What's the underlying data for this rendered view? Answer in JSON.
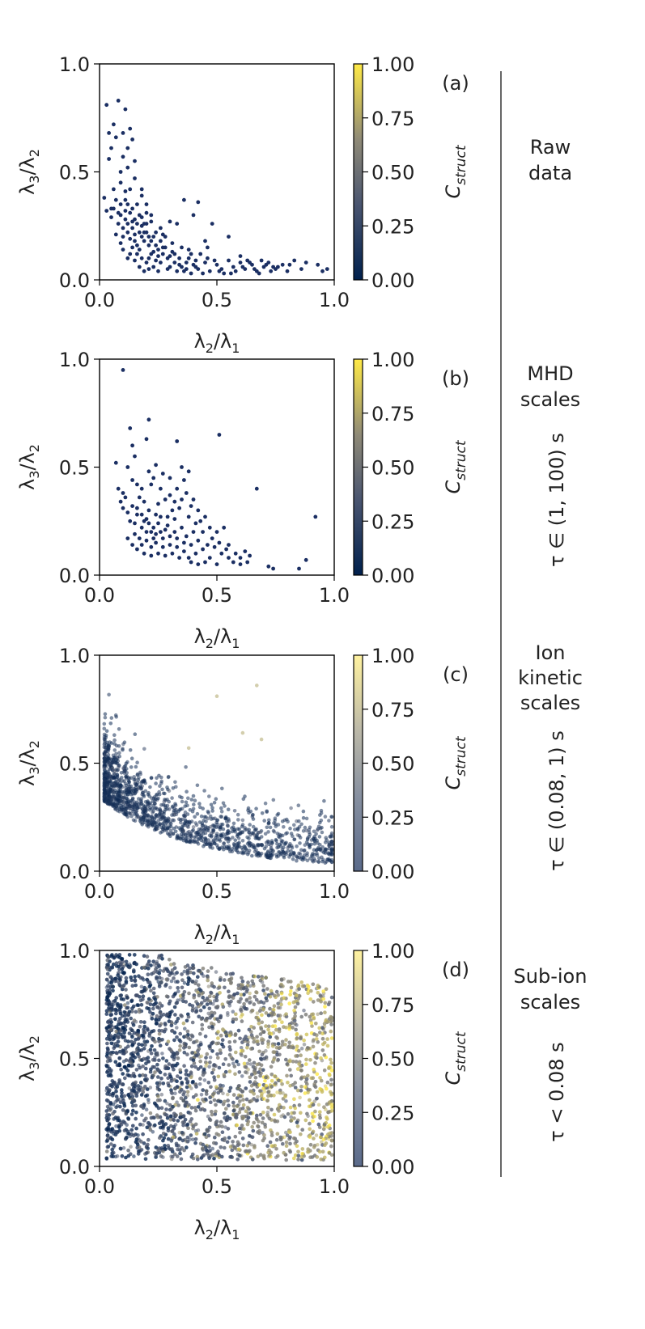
{
  "colorbar": {
    "label": "C_struct",
    "label_main": "C",
    "label_sub": "struct",
    "ticks": [
      "1.00",
      "0.75",
      "0.50",
      "0.25",
      "0.00"
    ],
    "colormap": [
      "#00204d",
      "#575d6d",
      "#a59c74",
      "#ffea46"
    ]
  },
  "colors": {
    "axis": "#000000",
    "point_base": "#1b2f63"
  },
  "chart_data": [
    {
      "type": "scatter",
      "panel": "(a)",
      "xlabel": "λ2/λ1",
      "ylabel": "λ3/λ2",
      "xlim": [
        0,
        1
      ],
      "ylim": [
        0,
        1
      ],
      "x_ticks": [
        "0.0",
        "0.5",
        "1.0"
      ],
      "y_ticks": [
        "0.0",
        "0.5",
        "1.0"
      ],
      "colorbar_label": "C_struct",
      "colorbar_range": [
        0,
        1
      ],
      "side_label": [
        "Raw",
        "data"
      ],
      "tau_label": "",
      "grid": false,
      "point_opacity": 1.0,
      "points": [
        [
          0.03,
          0.81
        ],
        [
          0.08,
          0.83
        ],
        [
          0.11,
          0.79
        ],
        [
          0.04,
          0.68
        ],
        [
          0.05,
          0.61
        ],
        [
          0.07,
          0.66
        ],
        [
          0.1,
          0.57
        ],
        [
          0.12,
          0.52
        ],
        [
          0.04,
          0.56
        ],
        [
          0.09,
          0.5
        ],
        [
          0.13,
          0.7
        ],
        [
          0.15,
          0.55
        ],
        [
          0.02,
          0.38
        ],
        [
          0.03,
          0.32
        ],
        [
          0.05,
          0.33
        ],
        [
          0.09,
          0.35
        ],
        [
          0.11,
          0.37
        ],
        [
          0.16,
          0.35
        ],
        [
          0.18,
          0.29
        ],
        [
          0.2,
          0.26
        ],
        [
          0.14,
          0.24
        ],
        [
          0.12,
          0.22
        ],
        [
          0.1,
          0.2
        ],
        [
          0.09,
          0.3
        ],
        [
          0.13,
          0.31
        ],
        [
          0.15,
          0.28
        ],
        [
          0.17,
          0.22
        ],
        [
          0.19,
          0.18
        ],
        [
          0.21,
          0.16
        ],
        [
          0.23,
          0.2
        ],
        [
          0.25,
          0.14
        ],
        [
          0.27,
          0.12
        ],
        [
          0.14,
          0.15
        ],
        [
          0.16,
          0.12
        ],
        [
          0.18,
          0.1
        ],
        [
          0.2,
          0.08
        ],
        [
          0.12,
          0.1
        ],
        [
          0.22,
          0.12
        ],
        [
          0.24,
          0.09
        ],
        [
          0.28,
          0.15
        ],
        [
          0.3,
          0.11
        ],
        [
          0.32,
          0.08
        ],
        [
          0.35,
          0.06
        ],
        [
          0.38,
          0.1
        ],
        [
          0.4,
          0.07
        ],
        [
          0.42,
          0.05
        ],
        [
          0.45,
          0.08
        ],
        [
          0.47,
          0.04
        ],
        [
          0.5,
          0.07
        ],
        [
          0.52,
          0.05
        ],
        [
          0.55,
          0.09
        ],
        [
          0.57,
          0.06
        ],
        [
          0.6,
          0.08
        ],
        [
          0.62,
          0.05
        ],
        [
          0.65,
          0.07
        ],
        [
          0.67,
          0.04
        ],
        [
          0.7,
          0.06
        ],
        [
          0.72,
          0.08
        ],
        [
          0.75,
          0.05
        ],
        [
          0.78,
          0.07
        ],
        [
          0.8,
          0.04
        ],
        [
          0.83,
          0.09
        ],
        [
          0.88,
          0.08
        ],
        [
          0.93,
          0.07
        ],
        [
          0.95,
          0.04
        ],
        [
          0.36,
          0.37
        ],
        [
          0.42,
          0.36
        ],
        [
          0.4,
          0.3
        ],
        [
          0.3,
          0.27
        ],
        [
          0.33,
          0.26
        ],
        [
          0.48,
          0.26
        ],
        [
          0.55,
          0.2
        ],
        [
          0.45,
          0.18
        ],
        [
          0.38,
          0.14
        ],
        [
          0.26,
          0.24
        ],
        [
          0.22,
          0.3
        ],
        [
          0.2,
          0.35
        ],
        [
          0.18,
          0.42
        ],
        [
          0.06,
          0.42
        ],
        [
          0.08,
          0.26
        ],
        [
          0.1,
          0.14
        ],
        [
          0.15,
          0.18
        ],
        [
          0.17,
          0.14
        ],
        [
          0.19,
          0.22
        ],
        [
          0.21,
          0.1
        ],
        [
          0.23,
          0.06
        ],
        [
          0.26,
          0.08
        ],
        [
          0.29,
          0.05
        ],
        [
          0.31,
          0.13
        ],
        [
          0.34,
          0.1
        ],
        [
          0.36,
          0.04
        ],
        [
          0.39,
          0.03
        ],
        [
          0.43,
          0.12
        ],
        [
          0.46,
          0.1
        ],
        [
          0.53,
          0.03
        ],
        [
          0.58,
          0.04
        ],
        [
          0.63,
          0.09
        ],
        [
          0.68,
          0.03
        ],
        [
          0.73,
          0.04
        ],
        [
          0.11,
          0.28
        ],
        [
          0.13,
          0.19
        ],
        [
          0.15,
          0.21
        ],
        [
          0.12,
          0.26
        ],
        [
          0.14,
          0.33
        ],
        [
          0.16,
          0.26
        ],
        [
          0.18,
          0.2
        ],
        [
          0.2,
          0.22
        ],
        [
          0.22,
          0.18
        ],
        [
          0.24,
          0.16
        ],
        [
          0.26,
          0.18
        ],
        [
          0.28,
          0.2
        ],
        [
          0.17,
          0.3
        ],
        [
          0.11,
          0.32
        ],
        [
          0.07,
          0.21
        ],
        [
          0.09,
          0.17
        ],
        [
          0.13,
          0.12
        ],
        [
          0.15,
          0.09
        ],
        [
          0.17,
          0.06
        ],
        [
          0.19,
          0.04
        ],
        [
          0.21,
          0.05
        ],
        [
          0.25,
          0.04
        ],
        [
          0.3,
          0.06
        ],
        [
          0.33,
          0.04
        ],
        [
          0.37,
          0.08
        ],
        [
          0.41,
          0.06
        ],
        [
          0.44,
          0.03
        ],
        [
          0.49,
          0.09
        ],
        [
          0.51,
          0.04
        ],
        [
          0.56,
          0.03
        ],
        [
          0.61,
          0.06
        ],
        [
          0.66,
          0.05
        ],
        [
          0.71,
          0.07
        ],
        [
          0.76,
          0.06
        ],
        [
          0.09,
          0.45
        ],
        [
          0.11,
          0.41
        ],
        [
          0.07,
          0.37
        ],
        [
          0.05,
          0.29
        ],
        [
          0.13,
          0.42
        ],
        [
          0.19,
          0.26
        ],
        [
          0.27,
          0.21
        ],
        [
          0.31,
          0.17
        ],
        [
          0.35,
          0.15
        ],
        [
          0.39,
          0.12
        ],
        [
          0.46,
          0.15
        ],
        [
          0.6,
          0.11
        ],
        [
          0.64,
          0.08
        ],
        [
          0.69,
          0.09
        ],
        [
          0.74,
          0.06
        ],
        [
          0.81,
          0.07
        ],
        [
          0.86,
          0.05
        ],
        [
          0.97,
          0.05
        ],
        [
          0.14,
          0.27
        ],
        [
          0.16,
          0.16
        ],
        [
          0.18,
          0.25
        ],
        [
          0.21,
          0.2
        ],
        [
          0.23,
          0.13
        ],
        [
          0.25,
          0.11
        ],
        [
          0.12,
          0.35
        ],
        [
          0.1,
          0.24
        ],
        [
          0.08,
          0.31
        ],
        [
          0.06,
          0.33
        ],
        [
          0.12,
          0.61
        ],
        [
          0.14,
          0.65
        ],
        [
          0.06,
          0.72
        ],
        [
          0.1,
          0.68
        ],
        [
          0.15,
          0.47
        ],
        [
          0.18,
          0.39
        ],
        [
          0.2,
          0.31
        ],
        [
          0.22,
          0.27
        ],
        [
          0.24,
          0.22
        ],
        [
          0.27,
          0.15
        ],
        [
          0.29,
          0.1
        ],
        [
          0.32,
          0.12
        ],
        [
          0.34,
          0.07
        ],
        [
          0.37,
          0.05
        ],
        [
          0.41,
          0.09
        ]
      ]
    },
    {
      "type": "scatter",
      "panel": "(b)",
      "xlabel": "λ2/λ1",
      "ylabel": "λ3/λ2",
      "xlim": [
        0,
        1
      ],
      "ylim": [
        0,
        1
      ],
      "x_ticks": [
        "0.0",
        "0.5",
        "1.0"
      ],
      "y_ticks": [
        "0.0",
        "0.5",
        "1.0"
      ],
      "colorbar_label": "C_struct",
      "colorbar_range": [
        0,
        1
      ],
      "side_label": [
        "MHD",
        "scales"
      ],
      "tau_label": "τ ∈ (1, 100) s",
      "grid": false,
      "point_opacity": 1.0,
      "points": [
        [
          0.1,
          0.95
        ],
        [
          0.21,
          0.72
        ],
        [
          0.13,
          0.68
        ],
        [
          0.14,
          0.6
        ],
        [
          0.51,
          0.65
        ],
        [
          0.2,
          0.63
        ],
        [
          0.33,
          0.62
        ],
        [
          0.15,
          0.55
        ],
        [
          0.07,
          0.52
        ],
        [
          0.12,
          0.5
        ],
        [
          0.35,
          0.5
        ],
        [
          0.38,
          0.48
        ],
        [
          0.27,
          0.47
        ],
        [
          0.23,
          0.45
        ],
        [
          0.16,
          0.42
        ],
        [
          0.18,
          0.4
        ],
        [
          0.08,
          0.4
        ],
        [
          0.1,
          0.38
        ],
        [
          0.3,
          0.45
        ],
        [
          0.33,
          0.4
        ],
        [
          0.37,
          0.38
        ],
        [
          0.4,
          0.35
        ],
        [
          0.28,
          0.35
        ],
        [
          0.25,
          0.33
        ],
        [
          0.31,
          0.3
        ],
        [
          0.34,
          0.31
        ],
        [
          0.39,
          0.32
        ],
        [
          0.42,
          0.3
        ],
        [
          0.14,
          0.32
        ],
        [
          0.16,
          0.28
        ],
        [
          0.19,
          0.25
        ],
        [
          0.21,
          0.24
        ],
        [
          0.23,
          0.22
        ],
        [
          0.2,
          0.2
        ],
        [
          0.18,
          0.22
        ],
        [
          0.24,
          0.19
        ],
        [
          0.26,
          0.2
        ],
        [
          0.28,
          0.21
        ],
        [
          0.3,
          0.18
        ],
        [
          0.32,
          0.2
        ],
        [
          0.35,
          0.22
        ],
        [
          0.37,
          0.18
        ],
        [
          0.4,
          0.2
        ],
        [
          0.43,
          0.25
        ],
        [
          0.45,
          0.27
        ],
        [
          0.47,
          0.22
        ],
        [
          0.5,
          0.2
        ],
        [
          0.53,
          0.22
        ],
        [
          0.48,
          0.17
        ],
        [
          0.46,
          0.14
        ],
        [
          0.44,
          0.12
        ],
        [
          0.41,
          0.1
        ],
        [
          0.38,
          0.08
        ],
        [
          0.36,
          0.11
        ],
        [
          0.33,
          0.13
        ],
        [
          0.3,
          0.14
        ],
        [
          0.27,
          0.13
        ],
        [
          0.24,
          0.15
        ],
        [
          0.22,
          0.13
        ],
        [
          0.2,
          0.16
        ],
        [
          0.18,
          0.14
        ],
        [
          0.16,
          0.12
        ],
        [
          0.14,
          0.14
        ],
        [
          0.12,
          0.17
        ],
        [
          0.15,
          0.19
        ],
        [
          0.17,
          0.17
        ],
        [
          0.52,
          0.1
        ],
        [
          0.54,
          0.12
        ],
        [
          0.55,
          0.08
        ],
        [
          0.57,
          0.06
        ],
        [
          0.6,
          0.08
        ],
        [
          0.62,
          0.11
        ],
        [
          0.64,
          0.09
        ],
        [
          0.58,
          0.1
        ],
        [
          0.67,
          0.4
        ],
        [
          0.92,
          0.27
        ],
        [
          0.88,
          0.07
        ],
        [
          0.85,
          0.03
        ],
        [
          0.74,
          0.03
        ],
        [
          0.72,
          0.04
        ],
        [
          0.5,
          0.05
        ],
        [
          0.47,
          0.08
        ],
        [
          0.45,
          0.06
        ],
        [
          0.42,
          0.05
        ],
        [
          0.39,
          0.06
        ],
        [
          0.34,
          0.08
        ],
        [
          0.31,
          0.1
        ],
        [
          0.28,
          0.09
        ],
        [
          0.25,
          0.1
        ],
        [
          0.22,
          0.09
        ],
        [
          0.19,
          0.1
        ],
        [
          0.26,
          0.27
        ],
        [
          0.29,
          0.27
        ],
        [
          0.32,
          0.26
        ],
        [
          0.21,
          0.3
        ],
        [
          0.19,
          0.34
        ],
        [
          0.17,
          0.36
        ],
        [
          0.11,
          0.36
        ],
        [
          0.09,
          0.34
        ],
        [
          0.13,
          0.25
        ],
        [
          0.15,
          0.24
        ],
        [
          0.24,
          0.28
        ],
        [
          0.35,
          0.35
        ],
        [
          0.38,
          0.27
        ],
        [
          0.41,
          0.24
        ],
        [
          0.44,
          0.2
        ],
        [
          0.49,
          0.13
        ],
        [
          0.51,
          0.15
        ],
        [
          0.55,
          0.14
        ],
        [
          0.6,
          0.05
        ],
        [
          0.63,
          0.06
        ],
        [
          0.22,
          0.2
        ],
        [
          0.25,
          0.24
        ],
        [
          0.27,
          0.17
        ],
        [
          0.29,
          0.23
        ],
        [
          0.33,
          0.17
        ],
        [
          0.36,
          0.15
        ],
        [
          0.39,
          0.14
        ],
        [
          0.42,
          0.16
        ],
        [
          0.2,
          0.26
        ],
        [
          0.18,
          0.28
        ],
        [
          0.16,
          0.31
        ],
        [
          0.23,
          0.17
        ],
        [
          0.3,
          0.37
        ],
        [
          0.26,
          0.4
        ],
        [
          0.22,
          0.42
        ],
        [
          0.21,
          0.48
        ],
        [
          0.24,
          0.51
        ],
        [
          0.36,
          0.44
        ],
        [
          0.32,
          0.34
        ],
        [
          0.14,
          0.44
        ],
        [
          0.12,
          0.29
        ],
        [
          0.1,
          0.31
        ]
      ]
    },
    {
      "type": "scatter",
      "panel": "(c)",
      "xlabel": "λ2/λ1",
      "ylabel": "λ3/λ2",
      "xlim": [
        0,
        1
      ],
      "ylim": [
        0,
        1
      ],
      "x_ticks": [
        "0.0",
        "0.5",
        "1.0"
      ],
      "y_ticks": [
        "0.0",
        "0.5",
        "1.0"
      ],
      "colorbar_label": "C_struct",
      "colorbar_range": [
        0,
        1
      ],
      "side_label": [
        "Ion",
        "kinetic",
        "scales"
      ],
      "tau_label": "τ ∈ (0.08, 1) s",
      "grid": false,
      "point_opacity": 0.55,
      "distribution": {
        "count": 1500,
        "description": "dense cloud concentrated near (0.1, 0.25), decaying toward large λ2/λ1 and small λ3/λ2",
        "mean_c_struct": 0.1,
        "outliers": [
          [
            0.5,
            0.81
          ],
          [
            0.67,
            0.86
          ],
          [
            0.61,
            0.64
          ],
          [
            0.69,
            0.61
          ],
          [
            0.38,
            0.57
          ]
        ]
      }
    },
    {
      "type": "scatter",
      "panel": "(d)",
      "xlabel": "λ2/λ1",
      "ylabel": "λ3/λ2",
      "xlim": [
        0,
        1
      ],
      "ylim": [
        0,
        1
      ],
      "x_ticks": [
        "0.0",
        "0.5",
        "1.0"
      ],
      "y_ticks": [
        "0.0",
        "0.5",
        "1.0"
      ],
      "colorbar_label": "C_struct",
      "colorbar_range": [
        0,
        1
      ],
      "side_label": [
        "Sub-ion",
        "scales"
      ],
      "tau_label": "τ < 0.08 s",
      "grid": false,
      "point_opacity": 0.55,
      "distribution": {
        "count": 4500,
        "description": "broad cloud filling the panel, densest for λ2/λ1 < 0.5; C_struct increases with λ2/λ1",
        "mean_c_struct": 0.45
      }
    }
  ]
}
